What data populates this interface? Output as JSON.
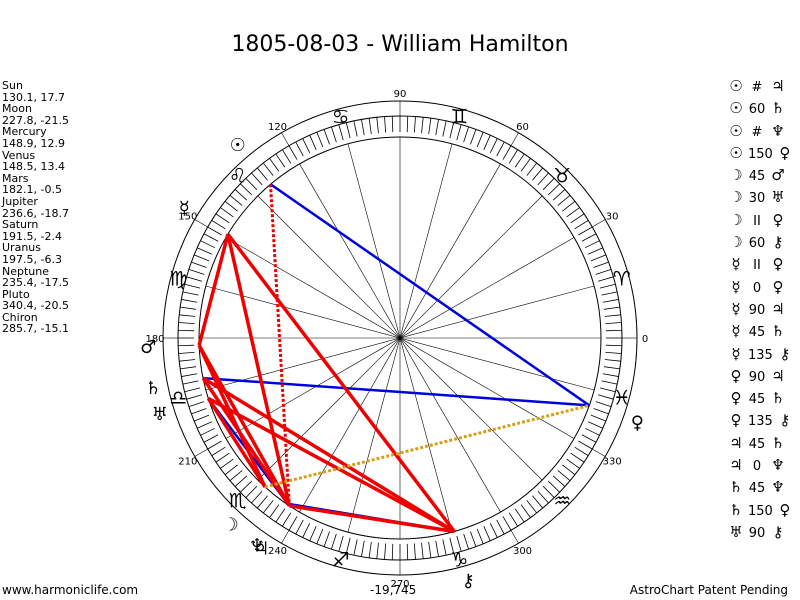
{
  "title": "1805-08-03 - William Hamilton",
  "planets": [
    {
      "name": "Sun",
      "values": "130.1, 17.7",
      "glyph": "☉"
    },
    {
      "name": "Moon",
      "values": "227.8, -21.5",
      "glyph": "☽"
    },
    {
      "name": "Mercury",
      "values": "148.9, 12.9",
      "glyph": "☿"
    },
    {
      "name": "Venus",
      "values": "148.5, 13.4",
      "glyph": "♀"
    },
    {
      "name": "Mars",
      "values": "182.1, -0.5",
      "glyph": "♂"
    },
    {
      "name": "Jupiter",
      "values": "236.6, -18.7",
      "glyph": "♃"
    },
    {
      "name": "Saturn",
      "values": "191.5, -2.4",
      "glyph": "♄"
    },
    {
      "name": "Uranus",
      "values": "197.5, -6.3",
      "glyph": "♅"
    },
    {
      "name": "Neptune",
      "values": "235.4, -17.5",
      "glyph": "♆"
    },
    {
      "name": "Pluto",
      "values": "340.4, -20.5",
      "glyph": "♀"
    },
    {
      "name": "Chiron",
      "values": "285.7, -15.1",
      "glyph": "⚷"
    }
  ],
  "aspects": [
    {
      "p1": "☉",
      "asp": "#",
      "p2": "♃"
    },
    {
      "p1": "☉",
      "asp": "60",
      "p2": "♄"
    },
    {
      "p1": "☉",
      "asp": "#",
      "p2": "♆"
    },
    {
      "p1": "☉",
      "asp": "150",
      "p2": "♀"
    },
    {
      "p1": "☽",
      "asp": "45",
      "p2": "♂"
    },
    {
      "p1": "☽",
      "asp": "30",
      "p2": "♅"
    },
    {
      "p1": "☽",
      "asp": "II",
      "p2": "♀"
    },
    {
      "p1": "☽",
      "asp": "60",
      "p2": "⚷"
    },
    {
      "p1": "☿",
      "asp": "II",
      "p2": "♀"
    },
    {
      "p1": "☿",
      "asp": "0",
      "p2": "♀"
    },
    {
      "p1": "☿",
      "asp": "90",
      "p2": "♃"
    },
    {
      "p1": "☿",
      "asp": "45",
      "p2": "♄"
    },
    {
      "p1": "☿",
      "asp": "135",
      "p2": "⚷"
    },
    {
      "p1": "♀",
      "asp": "90",
      "p2": "♃"
    },
    {
      "p1": "♀",
      "asp": "45",
      "p2": "♄"
    },
    {
      "p1": "♀",
      "asp": "135",
      "p2": "⚷"
    },
    {
      "p1": "♃",
      "asp": "45",
      "p2": "♄"
    },
    {
      "p1": "♃",
      "asp": "0",
      "p2": "♆"
    },
    {
      "p1": "♄",
      "asp": "45",
      "p2": "♆"
    },
    {
      "p1": "♄",
      "asp": "150",
      "p2": "♀"
    },
    {
      "p1": "♅",
      "asp": "90",
      "p2": "⚷"
    }
  ],
  "wheel": {
    "degree_labels": [
      "0",
      "30",
      "60",
      "90",
      "120",
      "150",
      "180",
      "210",
      "240",
      "270",
      "300",
      "330"
    ],
    "sign_glyphs": [
      "♈",
      "♉",
      "♊",
      "♋",
      "♌",
      "♍",
      "♎",
      "♏",
      "♐",
      "♑",
      "♒",
      "♓"
    ],
    "center_value": "-19,745"
  },
  "chart_placements": [
    {
      "glyph": "☉",
      "longitude": 130.1
    },
    {
      "glyph": "☽",
      "longitude": 227.8
    },
    {
      "glyph": "☿",
      "longitude": 148.9
    },
    {
      "glyph": "♂",
      "longitude": 182.1
    },
    {
      "glyph": "♃",
      "longitude": 236.6
    },
    {
      "glyph": "♄",
      "longitude": 191.5
    },
    {
      "glyph": "♅",
      "longitude": 197.5
    },
    {
      "glyph": "♆",
      "longitude": 235.4
    },
    {
      "glyph": "♀",
      "longitude": 340.4
    },
    {
      "glyph": "⚷",
      "longitude": 285.7
    }
  ],
  "aspect_lines": [
    {
      "from": 130.1,
      "to": 340.4,
      "color": "#0000dd",
      "style": "solid"
    },
    {
      "from": 148.9,
      "to": 236.6,
      "color": "#0000dd",
      "style": "solid"
    },
    {
      "from": 191.5,
      "to": 340.4,
      "color": "#0000dd",
      "style": "solid"
    },
    {
      "from": 197.5,
      "to": 236.6,
      "color": "#0000dd",
      "style": "solid"
    },
    {
      "from": 197.5,
      "to": 285.7,
      "color": "#0000dd",
      "style": "solid"
    },
    {
      "from": 235.4,
      "to": 285.7,
      "color": "#0000dd",
      "style": "solid"
    },
    {
      "from": 148.9,
      "to": 285.7,
      "color": "#ee0000",
      "style": "solid"
    },
    {
      "from": 148.9,
      "to": 182.1,
      "color": "#ee0000",
      "style": "solid"
    },
    {
      "from": 148.9,
      "to": 236.6,
      "color": "#ee0000",
      "style": "solid"
    },
    {
      "from": 182.1,
      "to": 227.8,
      "color": "#ee0000",
      "style": "solid"
    },
    {
      "from": 182.1,
      "to": 236.6,
      "color": "#ee0000",
      "style": "solid"
    },
    {
      "from": 191.5,
      "to": 236.6,
      "color": "#ee0000",
      "style": "solid"
    },
    {
      "from": 197.5,
      "to": 285.7,
      "color": "#ee0000",
      "style": "solid"
    },
    {
      "from": 191.5,
      "to": 285.7,
      "color": "#ee0000",
      "style": "solid"
    },
    {
      "from": 197.5,
      "to": 227.8,
      "color": "#ee0000",
      "style": "solid"
    },
    {
      "from": 236.6,
      "to": 285.7,
      "color": "#ee0000",
      "style": "solid"
    },
    {
      "from": 130.1,
      "to": 236.6,
      "color": "#ee0000",
      "style": "dotted"
    },
    {
      "from": 227.8,
      "to": 340.4,
      "color": "#d4a017",
      "style": "dotted"
    }
  ],
  "footer": {
    "left": "www.harmoniclife.com",
    "right": "AstroChart Patent Pending"
  }
}
